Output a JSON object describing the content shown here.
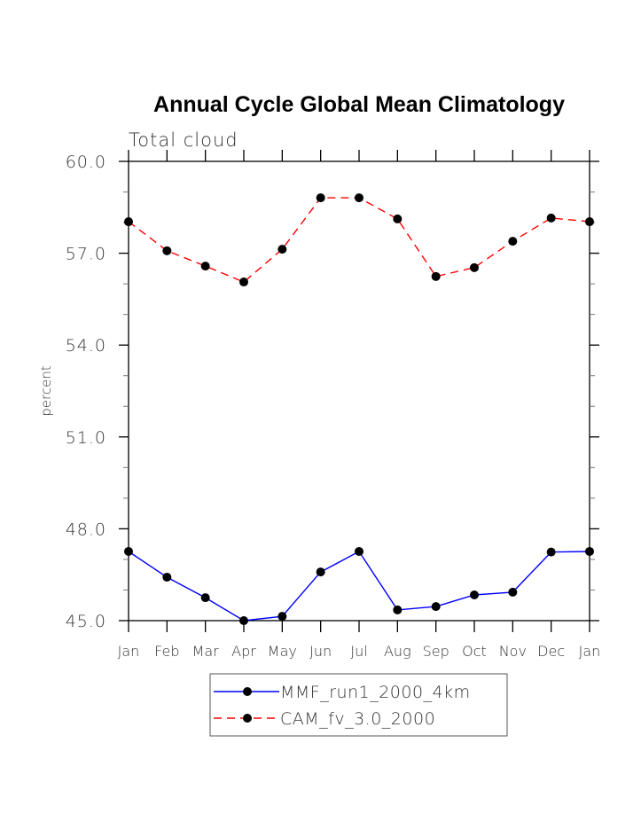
{
  "chart_data": {
    "type": "line",
    "title": "Annual Cycle Global Mean Climatology",
    "subtitle": "Total cloud",
    "xlabel": "",
    "ylabel": "percent",
    "categories": [
      "Jan",
      "Feb",
      "Mar",
      "Apr",
      "May",
      "Jun",
      "Jul",
      "Aug",
      "Sep",
      "Oct",
      "Nov",
      "Dec",
      "Jan"
    ],
    "ylim": [
      45.0,
      60.0
    ],
    "yticks": [
      45.0,
      48.0,
      51.0,
      54.0,
      57.0,
      60.0
    ],
    "ytick_labels": [
      "45.0",
      "48.0",
      "51.0",
      "54.0",
      "57.0",
      "60.0"
    ],
    "yminor_step": 1.0,
    "grid": false,
    "legend_position": "bottom-center",
    "series": [
      {
        "name": "MMF_run1_2000_4km",
        "color": "#0000ff",
        "dash": "solid",
        "marker": "filled-circle",
        "values": [
          47.26,
          46.42,
          45.75,
          45.0,
          45.14,
          46.59,
          47.26,
          45.35,
          45.46,
          45.84,
          45.93,
          47.24,
          47.26
        ]
      },
      {
        "name": "CAM_fv_3.0_2000",
        "color": "#ff0000",
        "dash": "dashed",
        "marker": "filled-circle",
        "values": [
          58.03,
          57.08,
          56.58,
          56.06,
          57.13,
          58.81,
          58.81,
          58.12,
          56.24,
          56.53,
          57.39,
          58.15,
          58.03
        ]
      }
    ]
  }
}
